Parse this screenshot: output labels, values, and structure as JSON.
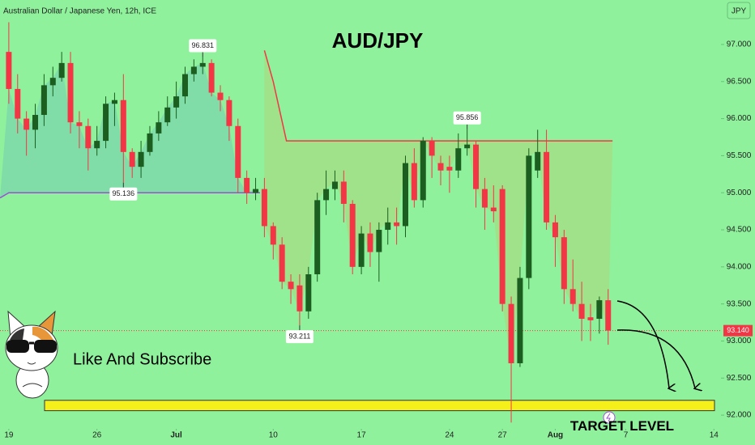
{
  "chart_data": {
    "type": "candlestick",
    "header": "Australian Dollar / Japanese Yen, 12h, ICE",
    "title": "AUD/JPY",
    "currency": "JPY",
    "subscribe_text": "Like And Subscribe",
    "up_color": "#1b5e20",
    "down_color": "#f23645",
    "x": [
      0,
      1,
      2,
      3,
      4,
      5,
      6,
      7,
      8,
      9,
      10,
      11,
      12,
      13,
      14,
      15,
      16,
      17,
      18,
      19,
      20,
      21,
      22,
      23,
      24,
      25,
      26,
      27,
      28,
      29,
      30,
      31,
      32,
      33,
      34,
      35,
      36,
      37,
      38,
      39,
      40,
      41,
      42,
      43,
      44,
      45,
      46,
      47,
      48,
      49,
      50,
      51,
      52,
      53,
      54,
      55,
      56,
      57,
      58,
      59,
      60,
      61,
      62,
      63,
      64,
      65,
      66,
      67,
      68
    ],
    "ohlc": {
      "open": [
        96.9,
        96.4,
        96.0,
        95.85,
        96.05,
        96.45,
        96.55,
        96.75,
        95.95,
        95.9,
        95.6,
        95.7,
        96.2,
        96.25,
        95.55,
        95.35,
        95.55,
        95.8,
        95.95,
        96.15,
        96.3,
        96.6,
        96.7,
        96.75,
        96.35,
        96.25,
        95.9,
        95.2,
        95.0,
        95.05,
        94.55,
        94.3,
        93.8,
        93.75,
        93.4,
        93.9,
        94.9,
        95.05,
        95.15,
        94.85,
        94.0,
        94.45,
        94.2,
        94.5,
        94.6,
        94.55,
        95.4,
        94.9,
        95.7,
        95.4,
        95.35,
        95.3,
        95.6,
        95.65,
        95.05,
        94.8,
        95.05,
        93.5,
        92.7,
        93.85,
        95.3,
        95.55,
        94.6,
        94.4,
        93.7,
        93.5,
        93.32,
        93.3,
        93.55
      ],
      "high": [
        97.3,
        96.6,
        96.1,
        96.2,
        96.6,
        96.7,
        96.9,
        96.9,
        96.1,
        96.0,
        95.9,
        96.3,
        96.35,
        96.6,
        95.6,
        95.7,
        95.9,
        96.1,
        96.3,
        96.5,
        96.7,
        96.8,
        96.831,
        96.8,
        96.45,
        96.3,
        96.0,
        95.3,
        95.2,
        95.2,
        94.6,
        94.4,
        93.9,
        93.9,
        94.0,
        95.0,
        95.3,
        95.3,
        95.3,
        94.9,
        94.55,
        94.6,
        94.6,
        94.8,
        94.8,
        95.5,
        95.6,
        95.75,
        95.75,
        95.5,
        95.5,
        95.8,
        95.856,
        95.7,
        95.2,
        95.1,
        95.1,
        93.6,
        94.0,
        95.6,
        95.85,
        95.85,
        94.7,
        94.5,
        94.1,
        93.8,
        93.5,
        93.6,
        93.7
      ],
      "low": [
        96.2,
        95.8,
        95.5,
        95.6,
        95.9,
        96.3,
        96.5,
        95.8,
        95.6,
        95.3,
        95.5,
        95.6,
        95.9,
        95.136,
        95.2,
        95.2,
        95.5,
        95.7,
        95.9,
        96.0,
        96.2,
        96.5,
        96.6,
        96.3,
        96.1,
        95.7,
        95.0,
        94.85,
        94.9,
        94.4,
        94.1,
        93.7,
        93.5,
        93.211,
        93.3,
        93.8,
        94.7,
        94.9,
        94.6,
        93.9,
        93.9,
        94.0,
        93.8,
        94.3,
        94.3,
        94.4,
        94.8,
        94.8,
        95.2,
        95.1,
        95.0,
        95.2,
        95.5,
        94.8,
        94.5,
        94.6,
        93.4,
        91.9,
        92.65,
        93.7,
        95.2,
        94.5,
        94.0,
        93.5,
        93.4,
        93.0,
        93.0,
        93.1,
        92.95
      ],
      "close": [
        96.4,
        96.0,
        95.85,
        96.05,
        96.45,
        96.55,
        96.75,
        95.95,
        95.9,
        95.6,
        95.7,
        96.2,
        96.25,
        95.55,
        95.35,
        95.55,
        95.8,
        95.95,
        96.15,
        96.3,
        96.6,
        96.7,
        96.75,
        96.35,
        96.25,
        95.9,
        95.2,
        95.0,
        95.05,
        94.55,
        94.3,
        93.8,
        93.7,
        93.4,
        93.9,
        94.9,
        95.05,
        95.15,
        94.85,
        94.0,
        94.45,
        94.2,
        94.5,
        94.6,
        94.55,
        95.4,
        94.9,
        95.7,
        95.5,
        95.3,
        95.3,
        95.6,
        95.65,
        95.05,
        94.8,
        94.75,
        93.5,
        92.7,
        93.85,
        95.5,
        95.55,
        94.6,
        94.4,
        93.7,
        93.5,
        93.3,
        93.28,
        93.55,
        93.14
      ]
    },
    "indicator": [
      {
        "color": "#9c4fd6",
        "x": [
          -1,
          0,
          28.5
        ],
        "values": [
          94.93,
          95.0,
          95.0
        ]
      },
      {
        "color": "#f23645",
        "x": [
          29,
          30,
          31.5,
          68.5
        ],
        "values": [
          96.92,
          96.5,
          95.7,
          95.7
        ]
      }
    ],
    "annotations": [
      {
        "x": 22,
        "value": 96.831
      },
      {
        "x": 13,
        "value": 95.136
      },
      {
        "x": 52,
        "value": 95.856
      },
      {
        "x": 33,
        "value": 93.211
      }
    ],
    "last_price": {
      "value": 93.14,
      "label": "93.140"
    },
    "target": {
      "label": "TARGET LEVEL",
      "range": [
        92.06,
        92.2
      ]
    },
    "xlim": [
      -1,
      80.8
    ],
    "ylim": [
      91.87,
      97.6
    ],
    "xticks": [
      {
        "value": 0,
        "label": "19"
      },
      {
        "value": 10,
        "label": "26"
      },
      {
        "value": 19,
        "label": "Jul"
      },
      {
        "value": 30,
        "label": "10"
      },
      {
        "value": 40,
        "label": "17"
      },
      {
        "value": 50,
        "label": "24"
      },
      {
        "value": 56,
        "label": "27"
      },
      {
        "value": 62,
        "label": "Aug"
      },
      {
        "value": 70,
        "label": "7"
      },
      {
        "value": 80,
        "label": "14"
      }
    ],
    "yticks": [
      {
        "value": 92,
        "label": "92.000"
      },
      {
        "value": 92.5,
        "label": "92.500"
      },
      {
        "value": 93,
        "label": "93.000"
      },
      {
        "value": 93.5,
        "label": "93.500"
      },
      {
        "value": 94,
        "label": "94.000"
      },
      {
        "value": 94.5,
        "label": "94.500"
      },
      {
        "value": 95,
        "label": "95.000"
      },
      {
        "value": 95.5,
        "label": "95.500"
      },
      {
        "value": 96,
        "label": "96.000"
      },
      {
        "value": 96.5,
        "label": "96.500"
      },
      {
        "value": 97,
        "label": "97.000"
      }
    ]
  }
}
